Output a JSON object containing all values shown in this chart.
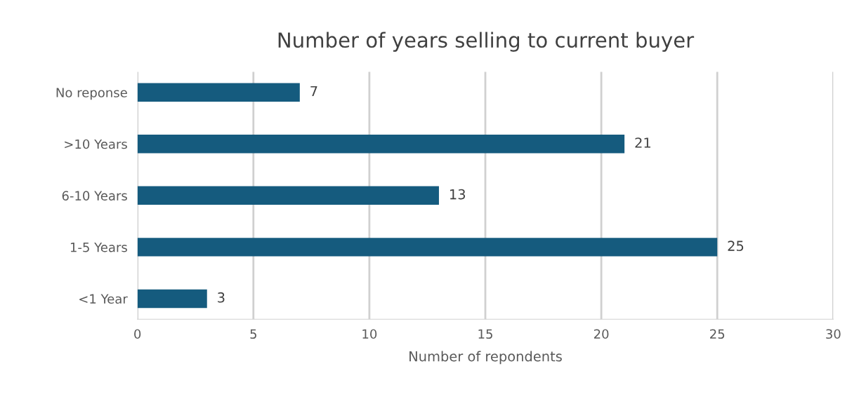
{
  "chart_data": {
    "type": "bar",
    "orientation": "horizontal",
    "title": "Number of years selling to current buyer",
    "xlabel": "Number of repondents",
    "categories": [
      "No reponse",
      ">10 Years",
      "6-10 Years",
      "1-5 Years",
      "<1 Year"
    ],
    "values": [
      7,
      21,
      13,
      25,
      3
    ],
    "color": "#155b7e",
    "xlim": [
      0,
      30
    ],
    "xticks": [
      0,
      5,
      10,
      15,
      20,
      25,
      30
    ],
    "grid": "x",
    "data_labels": true
  }
}
